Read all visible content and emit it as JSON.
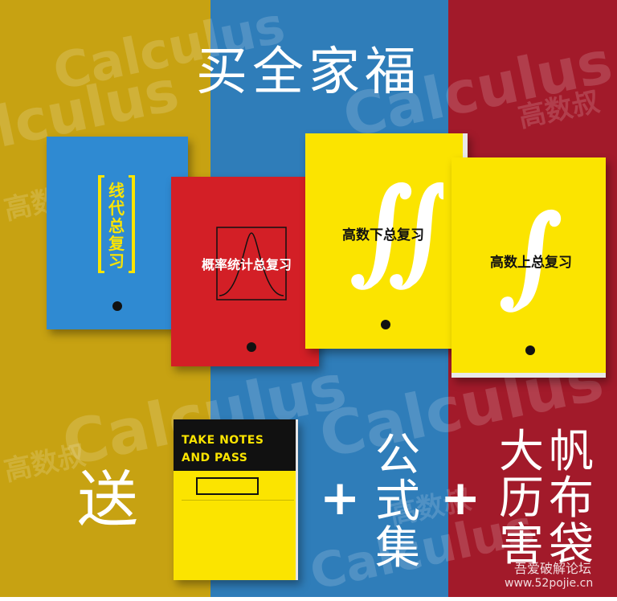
{
  "colors": {
    "mustard": "#c7a212",
    "blue": "#2f7db9",
    "crimson": "#a21a2a",
    "yellow": "#fbe400",
    "red": "#d31f26"
  },
  "watermark": {
    "word": "Calculus",
    "cn": "高数叔"
  },
  "title": "买全家福",
  "books": {
    "linear": "线代总复习",
    "prob": "概率统计总复习",
    "calc2": "高数下总复习",
    "calc1": "高数上总复习",
    "integral_icon": "integral-icon"
  },
  "gift": {
    "song": "送",
    "notebook_line1": "TAKE NOTES",
    "notebook_line2": "AND PASS",
    "plus1": "+",
    "formula": [
      "公",
      "式",
      "集"
    ],
    "plus2": "+",
    "calendar": [
      "大",
      "历",
      "害"
    ],
    "bag": [
      "帆",
      "布",
      "袋"
    ]
  },
  "site": {
    "name": "吾爱破解论坛",
    "url": "www.52pojie.cn"
  }
}
